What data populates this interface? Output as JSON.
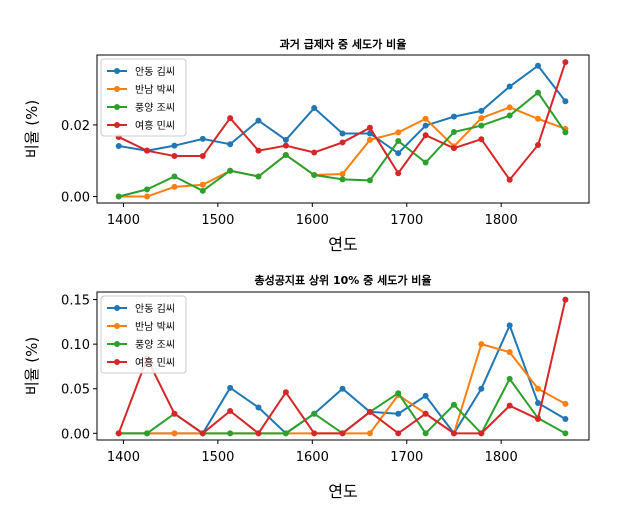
{
  "chart_data": [
    {
      "type": "line",
      "title": "과거 급제자 중 세도가 비율",
      "xlabel": "연도",
      "ylabel": "비율 (%)",
      "xlim": [
        1372,
        1893
      ],
      "ylim": [
        -0.0018,
        0.0395
      ],
      "xticks": [
        1400,
        1500,
        1600,
        1700,
        1800
      ],
      "yticks": [
        0.0,
        0.02
      ],
      "ytick_labels": [
        "0.00",
        "0.02"
      ],
      "grid": false,
      "legend_position": "top-left",
      "x": [
        1395,
        1425,
        1454,
        1484,
        1513,
        1543,
        1572,
        1602,
        1632,
        1661,
        1691,
        1720,
        1750,
        1779,
        1809,
        1839,
        1868
      ],
      "series": [
        {
          "name": "안동 김씨",
          "color": "#1f77b4",
          "values": [
            0.0141,
            0.0128,
            0.0142,
            0.0161,
            0.0146,
            0.0212,
            0.0158,
            0.0247,
            0.0176,
            0.0176,
            0.0121,
            0.0198,
            0.0223,
            0.0239,
            0.0307,
            0.0365,
            0.0266
          ]
        },
        {
          "name": "반남 박씨",
          "color": "#ff7f0e",
          "values": [
            0.0,
            0.0,
            0.0027,
            0.0033,
            0.0072,
            0.0056,
            0.0116,
            0.006,
            0.0063,
            0.0158,
            0.0179,
            0.0217,
            0.014,
            0.0219,
            0.0249,
            0.0217,
            0.0189
          ]
        },
        {
          "name": "풍양 조씨",
          "color": "#2ca02c",
          "values": [
            0.0,
            0.002,
            0.0056,
            0.0016,
            0.0072,
            0.0056,
            0.0116,
            0.006,
            0.0048,
            0.0045,
            0.0155,
            0.0095,
            0.018,
            0.0198,
            0.0226,
            0.029,
            0.0179
          ]
        },
        {
          "name": "여흥 민씨",
          "color": "#d62728",
          "values": [
            0.0166,
            0.0128,
            0.0113,
            0.0113,
            0.0219,
            0.0128,
            0.0142,
            0.0123,
            0.0151,
            0.0192,
            0.0065,
            0.0171,
            0.0135,
            0.016,
            0.0047,
            0.0144,
            0.0375
          ]
        }
      ]
    },
    {
      "type": "line",
      "title": "총성공지표 상위 10% 중 세도가 비율",
      "xlabel": "연도",
      "ylabel": "비율 (%)",
      "xlim": [
        1372,
        1893
      ],
      "ylim": [
        -0.0075,
        0.1585
      ],
      "xticks": [
        1400,
        1500,
        1600,
        1700,
        1800
      ],
      "yticks": [
        0.0,
        0.05,
        0.1,
        0.15
      ],
      "ytick_labels": [
        "0.00",
        "0.05",
        "0.10",
        "0.15"
      ],
      "grid": false,
      "legend_position": "top-left",
      "x": [
        1395,
        1425,
        1454,
        1484,
        1513,
        1543,
        1572,
        1602,
        1632,
        1661,
        1691,
        1720,
        1750,
        1779,
        1809,
        1839,
        1868
      ],
      "series": [
        {
          "name": "안동 김씨",
          "color": "#1f77b4",
          "values": [
            0,
            0,
            0,
            0,
            0.051,
            0.029,
            0,
            0.022,
            0.05,
            0.024,
            0.022,
            0.042,
            0,
            0.05,
            0.121,
            0.034,
            0.016
          ]
        },
        {
          "name": "반남 박씨",
          "color": "#ff7f0e",
          "values": [
            0,
            0,
            0,
            0,
            0,
            0,
            0,
            0,
            0,
            0,
            0.043,
            0.022,
            0,
            0.1,
            0.091,
            0.05,
            0.033
          ]
        },
        {
          "name": "풍양 조씨",
          "color": "#2ca02c",
          "values": [
            0,
            0,
            0.022,
            0,
            0,
            0,
            0,
            0.022,
            0,
            0.024,
            0.045,
            0,
            0.032,
            0,
            0.061,
            0.017,
            0
          ]
        },
        {
          "name": "여흥 민씨",
          "color": "#d62728",
          "values": [
            0,
            0.084,
            0.022,
            0,
            0.025,
            0,
            0.046,
            0,
            0,
            0.024,
            0,
            0.022,
            0,
            0,
            0.031,
            0.016,
            0.15
          ]
        }
      ]
    }
  ]
}
